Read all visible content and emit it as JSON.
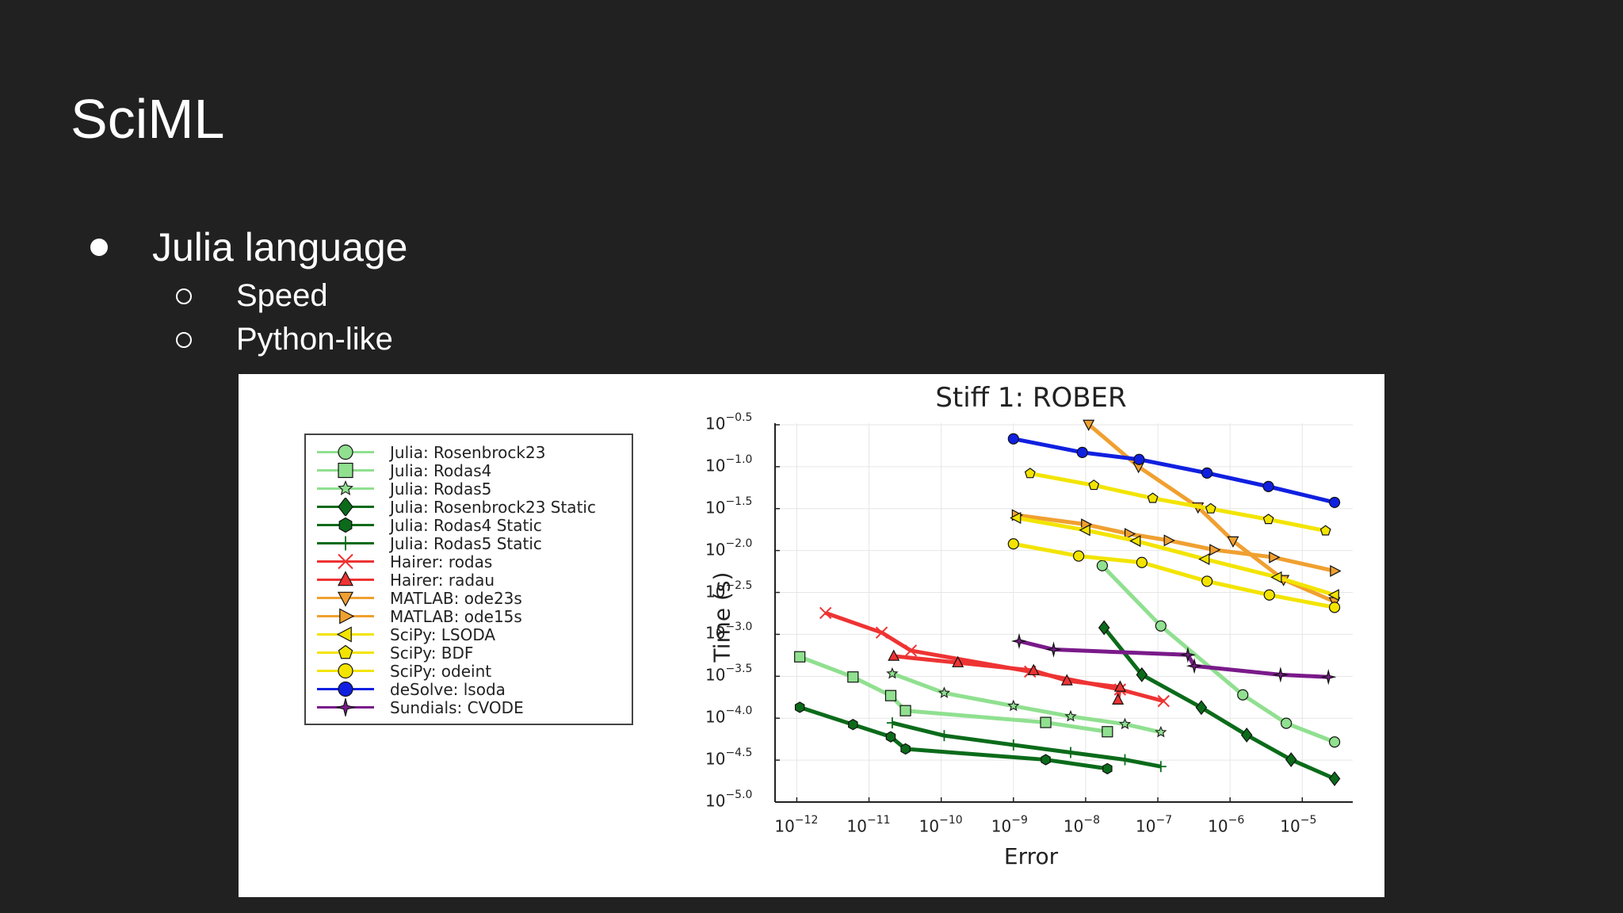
{
  "slide": {
    "title": "SciML",
    "bullets": [
      {
        "text": "Julia language",
        "sub": [
          "Speed",
          "Python-like"
        ]
      }
    ]
  },
  "chart_data": {
    "type": "line",
    "title": "Stiff 1: ROBER",
    "xlabel": "Error",
    "ylabel": "Time (s)",
    "x_scale": "log",
    "y_scale": "log",
    "xlim": [
      5e-13,
      5e-05
    ],
    "ylim": [
      1e-05,
      0.33
    ],
    "x_ticks": [
      {
        "base": "10",
        "exp": "−12",
        "value": 1e-12
      },
      {
        "base": "10",
        "exp": "−11",
        "value": 1e-11
      },
      {
        "base": "10",
        "exp": "−10",
        "value": 1e-10
      },
      {
        "base": "10",
        "exp": "−9",
        "value": 1e-09
      },
      {
        "base": "10",
        "exp": "−8",
        "value": 1e-08
      },
      {
        "base": "10",
        "exp": "−7",
        "value": 1e-07
      },
      {
        "base": "10",
        "exp": "−6",
        "value": 1e-06
      },
      {
        "base": "10",
        "exp": "−5",
        "value": 1e-05
      }
    ],
    "y_ticks": [
      {
        "base": "10",
        "exp": "−0.5",
        "value": -0.5
      },
      {
        "base": "10",
        "exp": "−1.0",
        "value": -1.0
      },
      {
        "base": "10",
        "exp": "−1.5",
        "value": -1.5
      },
      {
        "base": "10",
        "exp": "−2.0",
        "value": -2.0
      },
      {
        "base": "10",
        "exp": "−2.5",
        "value": -2.5
      },
      {
        "base": "10",
        "exp": "−3.0",
        "value": -3.0
      },
      {
        "base": "10",
        "exp": "−3.5",
        "value": -3.5
      },
      {
        "base": "10",
        "exp": "−4.0",
        "value": -4.0
      },
      {
        "base": "10",
        "exp": "−4.5",
        "value": -4.5
      },
      {
        "base": "10",
        "exp": "−5.0",
        "value": -5.0
      }
    ],
    "grid": true,
    "legend_position": "left",
    "series": [
      {
        "name": "Julia: Rosenbrock23",
        "color": "#90e090",
        "marker": "circle",
        "x": [
          1.7e-08,
          1.1e-07,
          1.5e-06,
          6e-06,
          2.8e-05
        ],
        "y": [
          0.0066,
          0.00126,
          0.00019,
          8.7e-05,
          5.2e-05
        ]
      },
      {
        "name": "Julia: Rodas4",
        "color": "#90e090",
        "marker": "square",
        "x": [
          1.1e-12,
          6e-12,
          2e-11,
          3.2e-11,
          2.8e-09,
          2e-08
        ],
        "y": [
          0.00054,
          0.00031,
          0.000186,
          0.000123,
          8.9e-05,
          6.9e-05
        ]
      },
      {
        "name": "Julia: Rodas5",
        "color": "#90e090",
        "marker": "star",
        "x": [
          2.1e-11,
          1.1e-10,
          1e-09,
          6.2e-09,
          3.5e-08,
          1.1e-07
        ],
        "y": [
          0.00034,
          0.0002,
          0.00014,
          0.000105,
          8.5e-05,
          6.8e-05
        ]
      },
      {
        "name": "Julia: Rosenbrock23 Static",
        "color": "#0b6b1a",
        "marker": "diamond",
        "x": [
          1.8e-08,
          6e-08,
          4e-07,
          1.7e-06,
          7e-06,
          2.8e-05
        ],
        "y": [
          0.0012,
          0.00033,
          0.000134,
          6.3e-05,
          3.2e-05,
          1.9e-05
        ]
      },
      {
        "name": "Julia: Rodas4 Static",
        "color": "#0b6b1a",
        "marker": "hexagon",
        "x": [
          1.1e-12,
          6e-12,
          2e-11,
          3.2e-11,
          2.8e-09,
          2e-08
        ],
        "y": [
          0.000135,
          8.4e-05,
          6e-05,
          4.3e-05,
          3.2e-05,
          2.5e-05
        ]
      },
      {
        "name": "Julia: Rodas5 Static",
        "color": "#0b6b1a",
        "marker": "cross",
        "x": [
          2.1e-11,
          1.1e-10,
          1e-09,
          6.2e-09,
          3.5e-08,
          1.1e-07
        ],
        "y": [
          8.8e-05,
          6.2e-05,
          4.8e-05,
          3.9e-05,
          3.2e-05,
          2.65e-05
        ]
      },
      {
        "name": "Hairer: rodas",
        "color": "#ee3333",
        "marker": "x",
        "x": [
          2.5e-12,
          1.5e-11,
          3.8e-11,
          1.7e-09,
          3e-08,
          1.2e-07
        ],
        "y": [
          0.0018,
          0.00105,
          0.00064,
          0.00036,
          0.00022,
          0.00016
        ]
      },
      {
        "name": "Hairer: radau",
        "color": "#ee3333",
        "marker": "triangle-up",
        "x": [
          2.2e-11,
          1.7e-10,
          1.9e-09,
          5.5e-09,
          3e-08,
          2.8e-08
        ],
        "y": [
          0.00055,
          0.00046,
          0.00037,
          0.00028,
          0.000235,
          0.000165
        ]
      },
      {
        "name": "MATLAB: ode23s",
        "color": "#f0a030",
        "marker": "triangle-down",
        "x": [
          1.1e-08,
          5.4e-08,
          3.6e-07,
          1.1e-06,
          5.5e-06,
          2.8e-05
        ],
        "y": [
          0.32,
          0.1,
          0.033,
          0.013,
          0.0045,
          0.00245
        ]
      },
      {
        "name": "MATLAB: ode15s",
        "color": "#f0a030",
        "marker": "triangle-right",
        "x": [
          1.1e-09,
          1e-08,
          4e-08,
          1.4e-07,
          6e-07,
          4e-06,
          2.8e-05
        ],
        "y": [
          0.0265,
          0.0205,
          0.0158,
          0.0132,
          0.0102,
          0.0083,
          0.0057
        ]
      },
      {
        "name": "SciPy: LSODA",
        "color": "#f3e400",
        "marker": "triangle-left",
        "x": [
          1.1e-09,
          1e-08,
          5e-08,
          4.5e-07,
          4.5e-06,
          2.8e-05
        ],
        "y": [
          0.0245,
          0.0175,
          0.013,
          0.0079,
          0.0048,
          0.00295
        ]
      },
      {
        "name": "SciPy: BDF",
        "color": "#f3e400",
        "marker": "pentagon",
        "x": [
          1.7e-09,
          1.3e-08,
          8.5e-08,
          5.4e-07,
          3.4e-06,
          2.1e-05
        ],
        "y": [
          0.083,
          0.06,
          0.042,
          0.0315,
          0.0235,
          0.0172
        ]
      },
      {
        "name": "SciPy: odeint",
        "color": "#f3e400",
        "marker": "circle",
        "x": [
          1e-09,
          8e-09,
          6e-08,
          4.8e-07,
          3.5e-06,
          2.8e-05
        ],
        "y": [
          0.012,
          0.0086,
          0.0072,
          0.0043,
          0.00295,
          0.0021
        ]
      },
      {
        "name": "deSolve: lsoda",
        "color": "#1020e0",
        "marker": "circle",
        "x": [
          1e-09,
          9e-09,
          5.5e-08,
          4.8e-07,
          3.4e-06,
          2.8e-05
        ],
        "y": [
          0.215,
          0.148,
          0.122,
          0.084,
          0.058,
          0.0375
        ]
      },
      {
        "name": "Sundials: CVODE",
        "color": "#7a1a8a",
        "marker": "star4",
        "x": [
          1.2e-09,
          3.6e-09,
          2.6e-07,
          3.2e-07,
          5e-06,
          2.3e-05
        ],
        "y": [
          0.00083,
          0.00066,
          0.00057,
          0.00042,
          0.00033,
          0.00031
        ]
      }
    ]
  }
}
